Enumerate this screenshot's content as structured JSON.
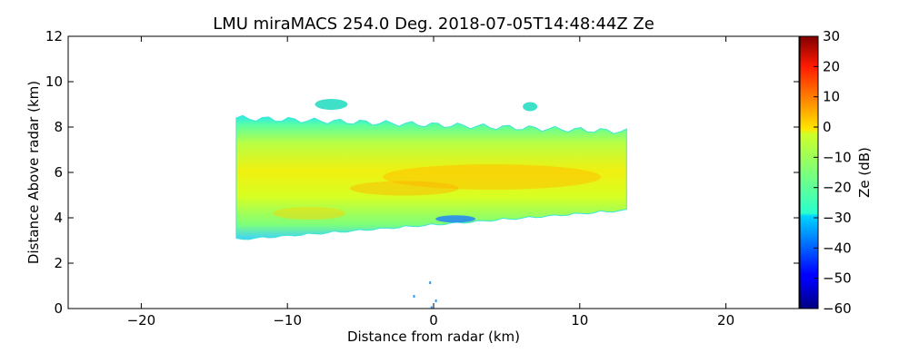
{
  "chart_data": {
    "type": "heatmap",
    "title": "LMU miraMACS 254.0 Deg. 2018-07-05T14:48:44Z  Ze",
    "xlabel": "Distance from radar (km)",
    "ylabel": "Distance Above radar  (km)",
    "xlim": [
      -25,
      25
    ],
    "ylim": [
      0,
      12
    ],
    "xticks": [
      -20,
      -10,
      0,
      10,
      20
    ],
    "xtick_labels": [
      "−20",
      "−10",
      "0",
      "10",
      "20"
    ],
    "yticks": [
      0,
      2,
      4,
      6,
      8,
      10,
      12
    ],
    "ytick_labels": [
      "0",
      "2",
      "4",
      "6",
      "8",
      "10",
      "12"
    ],
    "colorbar": {
      "label": "Ze (dB)",
      "range": [
        -60,
        30
      ],
      "ticks": [
        -60,
        -50,
        -40,
        -30,
        -20,
        -10,
        0,
        10,
        20,
        30
      ],
      "tick_labels": [
        "−60",
        "−50",
        "−40",
        "−30",
        "−20",
        "−10",
        "0",
        "10",
        "20",
        "30"
      ],
      "colormap": "jet"
    },
    "echo_region": {
      "x_range_km": [
        -13.5,
        13.2
      ],
      "base_km_left": 3.1,
      "base_km_right": 4.4,
      "top_km_left": 8.4,
      "top_km_right": 7.8,
      "typical_ze_db": [
        -20,
        5
      ],
      "max_ze_db": 5
    }
  }
}
